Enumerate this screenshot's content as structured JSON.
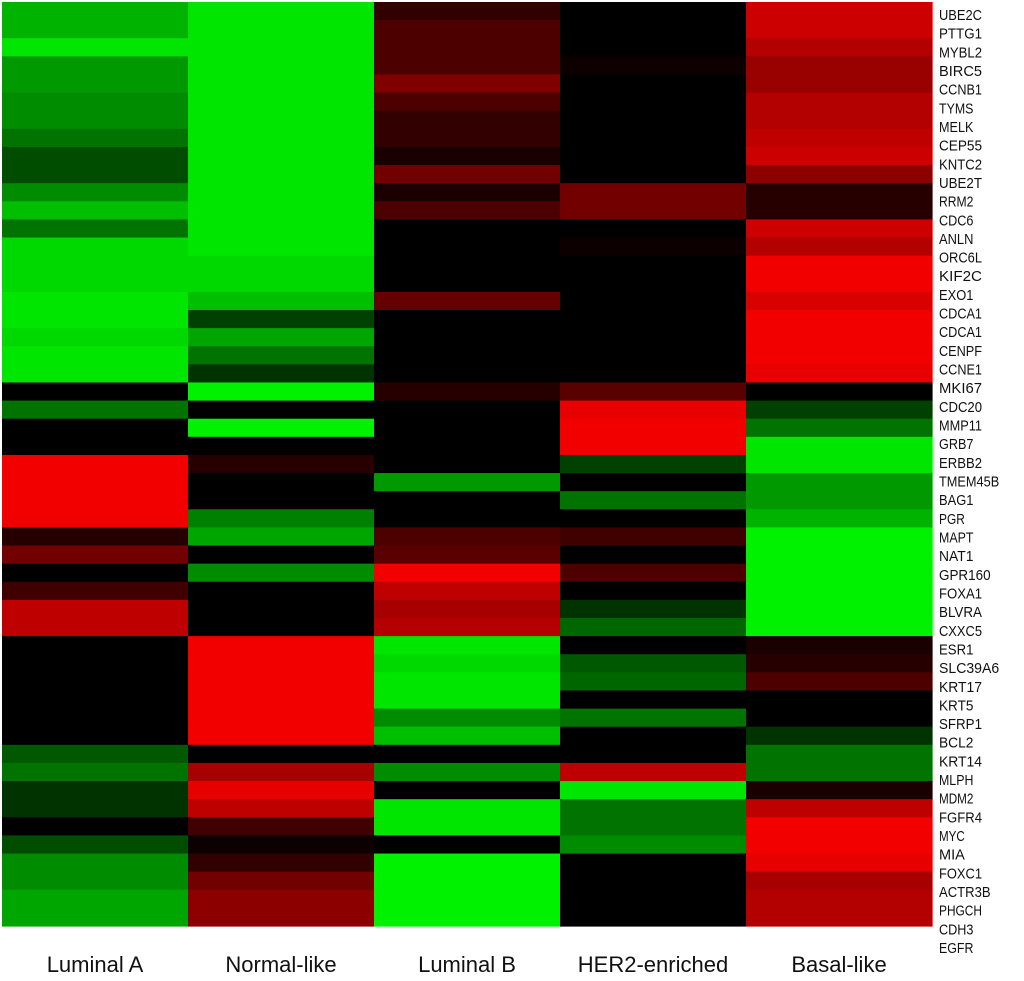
{
  "chart_data": {
    "type": "heatmap",
    "title": "",
    "color_scale": {
      "low": "#00ff00",
      "mid": "#000000",
      "high": "#ff0000"
    },
    "columns": [
      "Luminal A",
      "Normal-like",
      "Luminal B",
      "HER2-enriched",
      "Basal-like"
    ],
    "genes": [
      "UBE2C",
      "PTTG1",
      "MYBL2",
      "BIRC5",
      "CCNB1",
      "TYMS",
      "MELK",
      "CEP55",
      "KNTC2",
      "UBE2T",
      "RRM2",
      "CDC6",
      "ANLN",
      "ORC6L",
      "KIF2C",
      "EXO1",
      "CDCA1",
      "CDCA1",
      "CENPF",
      "CCNE1",
      "MKI67",
      "CDC20",
      "MMP11",
      "GRB7",
      "ERBB2",
      "TMEM45B",
      "BAG1",
      "PGR",
      "MAPT",
      "NAT1",
      "GPR160",
      "FOXA1",
      "BLVRA",
      "CXXC5",
      "ESR1",
      "SLC39A6",
      "KRT17",
      "KRT5",
      "SFRP1",
      "BCL2",
      "KRT14",
      "MLPH",
      "MDM2",
      "FGFR4",
      "MYC",
      "MIA",
      "FOXC1",
      "ACTR3B",
      "PHGCH",
      "CDH3",
      "EGFR"
    ],
    "values": [
      [
        -0.7,
        -0.9,
        0.2,
        0.0,
        0.8
      ],
      [
        -0.7,
        -0.9,
        0.3,
        0.0,
        0.8
      ],
      [
        -0.9,
        -0.9,
        0.3,
        0.0,
        0.7
      ],
      [
        -0.6,
        -0.9,
        0.3,
        0.05,
        0.6
      ],
      [
        -0.6,
        -0.9,
        0.5,
        0.0,
        0.6
      ],
      [
        -0.55,
        -0.9,
        0.3,
        0.0,
        0.7
      ],
      [
        -0.55,
        -0.9,
        0.2,
        0.0,
        0.7
      ],
      [
        -0.45,
        -0.9,
        0.2,
        0.0,
        0.75
      ],
      [
        -0.3,
        -0.9,
        0.1,
        0.0,
        0.8
      ],
      [
        -0.3,
        -0.9,
        0.45,
        0.0,
        0.55
      ],
      [
        -0.55,
        -0.9,
        0.1,
        0.45,
        0.15
      ],
      [
        -0.75,
        -0.9,
        0.3,
        0.45,
        0.15
      ],
      [
        -0.45,
        -0.9,
        0.0,
        0.0,
        0.8
      ],
      [
        -0.85,
        -0.9,
        0.0,
        0.05,
        0.7
      ],
      [
        -0.85,
        -0.85,
        0.0,
        0.0,
        0.95
      ],
      [
        -0.85,
        -0.85,
        0.0,
        0.0,
        0.95
      ],
      [
        -0.9,
        -0.75,
        0.4,
        0.0,
        0.85
      ],
      [
        -0.9,
        -0.25,
        0.0,
        0.0,
        0.95
      ],
      [
        -0.85,
        -0.65,
        0.0,
        0.0,
        0.95
      ],
      [
        -0.9,
        -0.45,
        0.0,
        0.0,
        0.95
      ],
      [
        -0.9,
        -0.2,
        0.0,
        0.0,
        0.9
      ],
      [
        0.0,
        -0.95,
        0.15,
        0.35,
        0.0
      ],
      [
        -0.45,
        0.0,
        0.0,
        0.9,
        -0.25
      ],
      [
        0.0,
        -0.95,
        0.0,
        0.95,
        -0.45
      ],
      [
        0.0,
        0.0,
        0.0,
        0.95,
        -0.9
      ],
      [
        0.95,
        0.15,
        0.0,
        -0.25,
        -0.9
      ],
      [
        0.95,
        0.0,
        -0.6,
        0.0,
        -0.6
      ],
      [
        0.95,
        0.0,
        0.0,
        -0.45,
        -0.6
      ],
      [
        0.95,
        -0.5,
        0.0,
        0.0,
        -0.7
      ],
      [
        0.15,
        -0.65,
        0.3,
        0.25,
        -0.95
      ],
      [
        0.45,
        0.0,
        0.35,
        0.0,
        -0.95
      ],
      [
        0.0,
        -0.55,
        0.95,
        0.3,
        -0.95
      ],
      [
        0.25,
        0.0,
        0.75,
        0.0,
        -0.95
      ],
      [
        0.75,
        0.0,
        0.65,
        -0.2,
        -0.95
      ],
      [
        0.75,
        0.0,
        0.7,
        -0.4,
        -0.95
      ],
      [
        0.0,
        0.95,
        -0.9,
        0.0,
        0.1
      ],
      [
        0.0,
        0.95,
        -0.85,
        -0.35,
        0.15
      ],
      [
        0.0,
        0.95,
        -0.9,
        -0.4,
        0.3
      ],
      [
        0.0,
        0.95,
        -0.9,
        0.0,
        0.0
      ],
      [
        0.0,
        0.95,
        -0.55,
        -0.45,
        0.0
      ],
      [
        0.0,
        0.95,
        -0.75,
        0.0,
        -0.2
      ],
      [
        -0.35,
        0.0,
        0.0,
        0.0,
        -0.45
      ],
      [
        -0.45,
        0.65,
        -0.55,
        0.75,
        -0.45
      ],
      [
        -0.2,
        0.9,
        0.0,
        -0.9,
        0.1
      ],
      [
        -0.2,
        0.75,
        -0.9,
        -0.45,
        0.75
      ],
      [
        0.0,
        0.25,
        -0.9,
        -0.45,
        0.95
      ],
      [
        -0.3,
        0.05,
        0.0,
        -0.55,
        0.95
      ],
      [
        -0.55,
        0.2,
        -0.95,
        0.0,
        0.9
      ],
      [
        -0.55,
        0.45,
        -0.95,
        0.0,
        0.65
      ],
      [
        -0.65,
        0.55,
        -0.95,
        0.0,
        0.7
      ],
      [
        -0.65,
        0.55,
        -0.95,
        0.0,
        0.7
      ]
    ]
  }
}
